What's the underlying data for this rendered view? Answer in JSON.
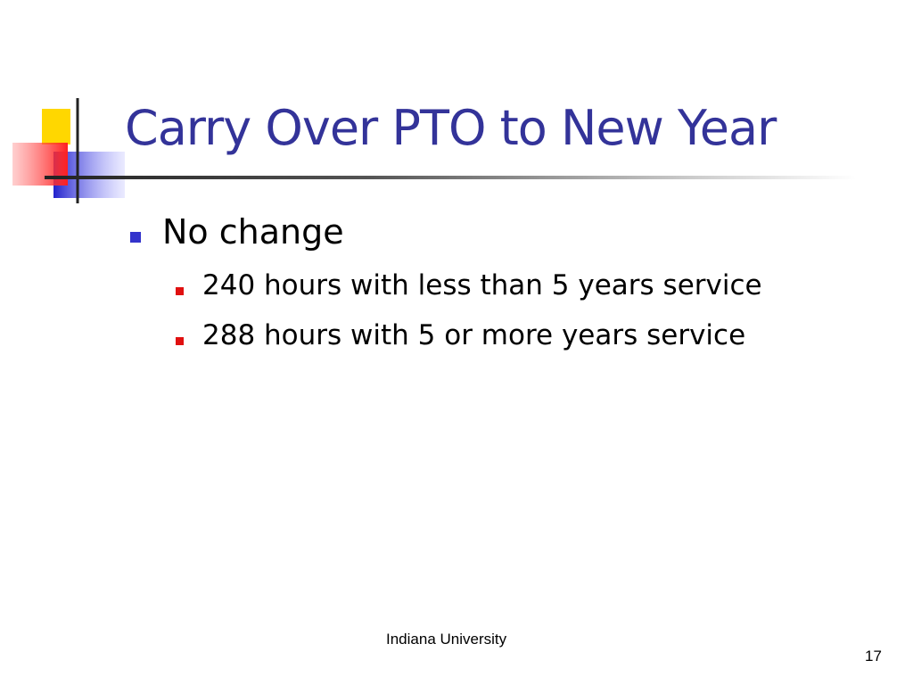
{
  "title": "Carry Over PTO to New Year",
  "bullets": [
    {
      "text": "No change",
      "children": [
        "240 hours with less than 5 years service",
        "288 hours with 5 or more years service"
      ]
    }
  ],
  "footer": "Indiana University",
  "slide_number": "17"
}
